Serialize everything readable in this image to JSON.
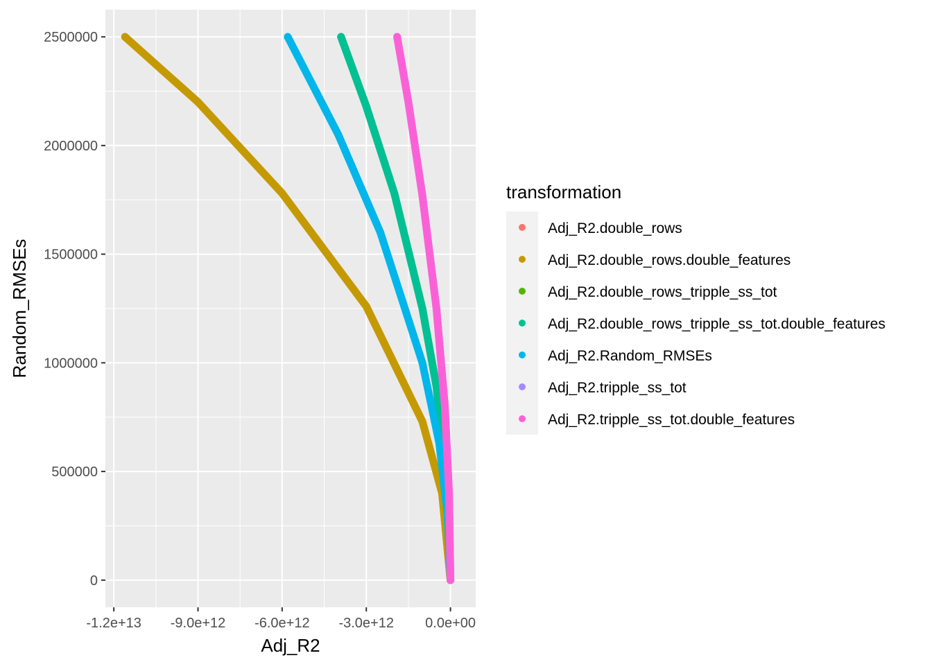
{
  "chart_data": {
    "type": "scatter",
    "xlabel": "Adj_R2",
    "ylabel": "Random_RMSEs",
    "xlim": [
      -12300000000000.0,
      900000000000.0
    ],
    "ylim": [
      -125000,
      2625000
    ],
    "x_ticks": [
      {
        "value": -12000000000000.0,
        "label": "-1.2e+13"
      },
      {
        "value": -9000000000000.0,
        "label": "-9.0e+12"
      },
      {
        "value": -6000000000000.0,
        "label": "-6.0e+12"
      },
      {
        "value": -3000000000000.0,
        "label": "-3.0e+12"
      },
      {
        "value": 0,
        "label": "0.0e+00"
      }
    ],
    "y_ticks": [
      {
        "value": 0,
        "label": "0"
      },
      {
        "value": 500000,
        "label": "500000"
      },
      {
        "value": 1000000,
        "label": "1000000"
      },
      {
        "value": 1500000,
        "label": "1500000"
      },
      {
        "value": 2000000,
        "label": "2000000"
      },
      {
        "value": 2500000,
        "label": "2500000"
      }
    ],
    "grid": true,
    "legend": {
      "title": "transformation",
      "position": "right"
    },
    "series": [
      {
        "name": "Adj_R2.double_rows",
        "color": "#F8766D",
        "points": [
          [
            -11600000000000.0,
            2500000
          ],
          [
            -9000000000000.0,
            2200000
          ],
          [
            -6000000000000.0,
            1780000
          ],
          [
            -3000000000000.0,
            1260000
          ],
          [
            -1000000000000.0,
            730000
          ],
          [
            -300000000000.0,
            400000
          ],
          [
            0,
            0
          ]
        ]
      },
      {
        "name": "Adj_R2.double_rows.double_features",
        "color": "#C49A00",
        "points": [
          [
            -11600000000000.0,
            2500000
          ],
          [
            -9000000000000.0,
            2200000
          ],
          [
            -6000000000000.0,
            1780000
          ],
          [
            -3000000000000.0,
            1260000
          ],
          [
            -1000000000000.0,
            730000
          ],
          [
            -300000000000.0,
            400000
          ],
          [
            0,
            0
          ]
        ]
      },
      {
        "name": "Adj_R2.double_rows_tripple_ss_tot",
        "color": "#53B400",
        "points": [
          [
            -3900000000000.0,
            2500000
          ],
          [
            -3000000000000.0,
            2180000
          ],
          [
            -2000000000000.0,
            1780000
          ],
          [
            -1000000000000.0,
            1250000
          ],
          [
            -500000000000.0,
            890000
          ],
          [
            -100000000000.0,
            400000
          ],
          [
            0,
            0
          ]
        ]
      },
      {
        "name": "Adj_R2.double_rows_tripple_ss_tot.double_features",
        "color": "#00C094",
        "points": [
          [
            -3900000000000.0,
            2500000
          ],
          [
            -3000000000000.0,
            2180000
          ],
          [
            -2000000000000.0,
            1780000
          ],
          [
            -1000000000000.0,
            1250000
          ],
          [
            -500000000000.0,
            890000
          ],
          [
            -100000000000.0,
            400000
          ],
          [
            0,
            0
          ]
        ]
      },
      {
        "name": "Adj_R2.Random_RMSEs",
        "color": "#00B6EB",
        "points": [
          [
            -5800000000000.0,
            2500000
          ],
          [
            -4000000000000.0,
            2050000
          ],
          [
            -2500000000000.0,
            1600000
          ],
          [
            -1000000000000.0,
            1000000
          ],
          [
            -400000000000.0,
            630000
          ],
          [
            -100000000000.0,
            300000
          ],
          [
            0,
            0
          ]
        ]
      },
      {
        "name": "Adj_R2.tripple_ss_tot",
        "color": "#A58AFF",
        "points": [
          [
            -1900000000000.0,
            2500000
          ],
          [
            -1500000000000.0,
            2200000
          ],
          [
            -1000000000000.0,
            1770000
          ],
          [
            -500000000000.0,
            1250000
          ],
          [
            -200000000000.0,
            800000
          ],
          [
            -50000000000.0,
            400000
          ],
          [
            0,
            0
          ]
        ]
      },
      {
        "name": "Adj_R2.tripple_ss_tot.double_features",
        "color": "#FB61D7",
        "points": [
          [
            -1900000000000.0,
            2500000
          ],
          [
            -1500000000000.0,
            2200000
          ],
          [
            -1000000000000.0,
            1770000
          ],
          [
            -500000000000.0,
            1250000
          ],
          [
            -200000000000.0,
            800000
          ],
          [
            -50000000000.0,
            400000
          ],
          [
            0,
            0
          ]
        ]
      }
    ]
  }
}
